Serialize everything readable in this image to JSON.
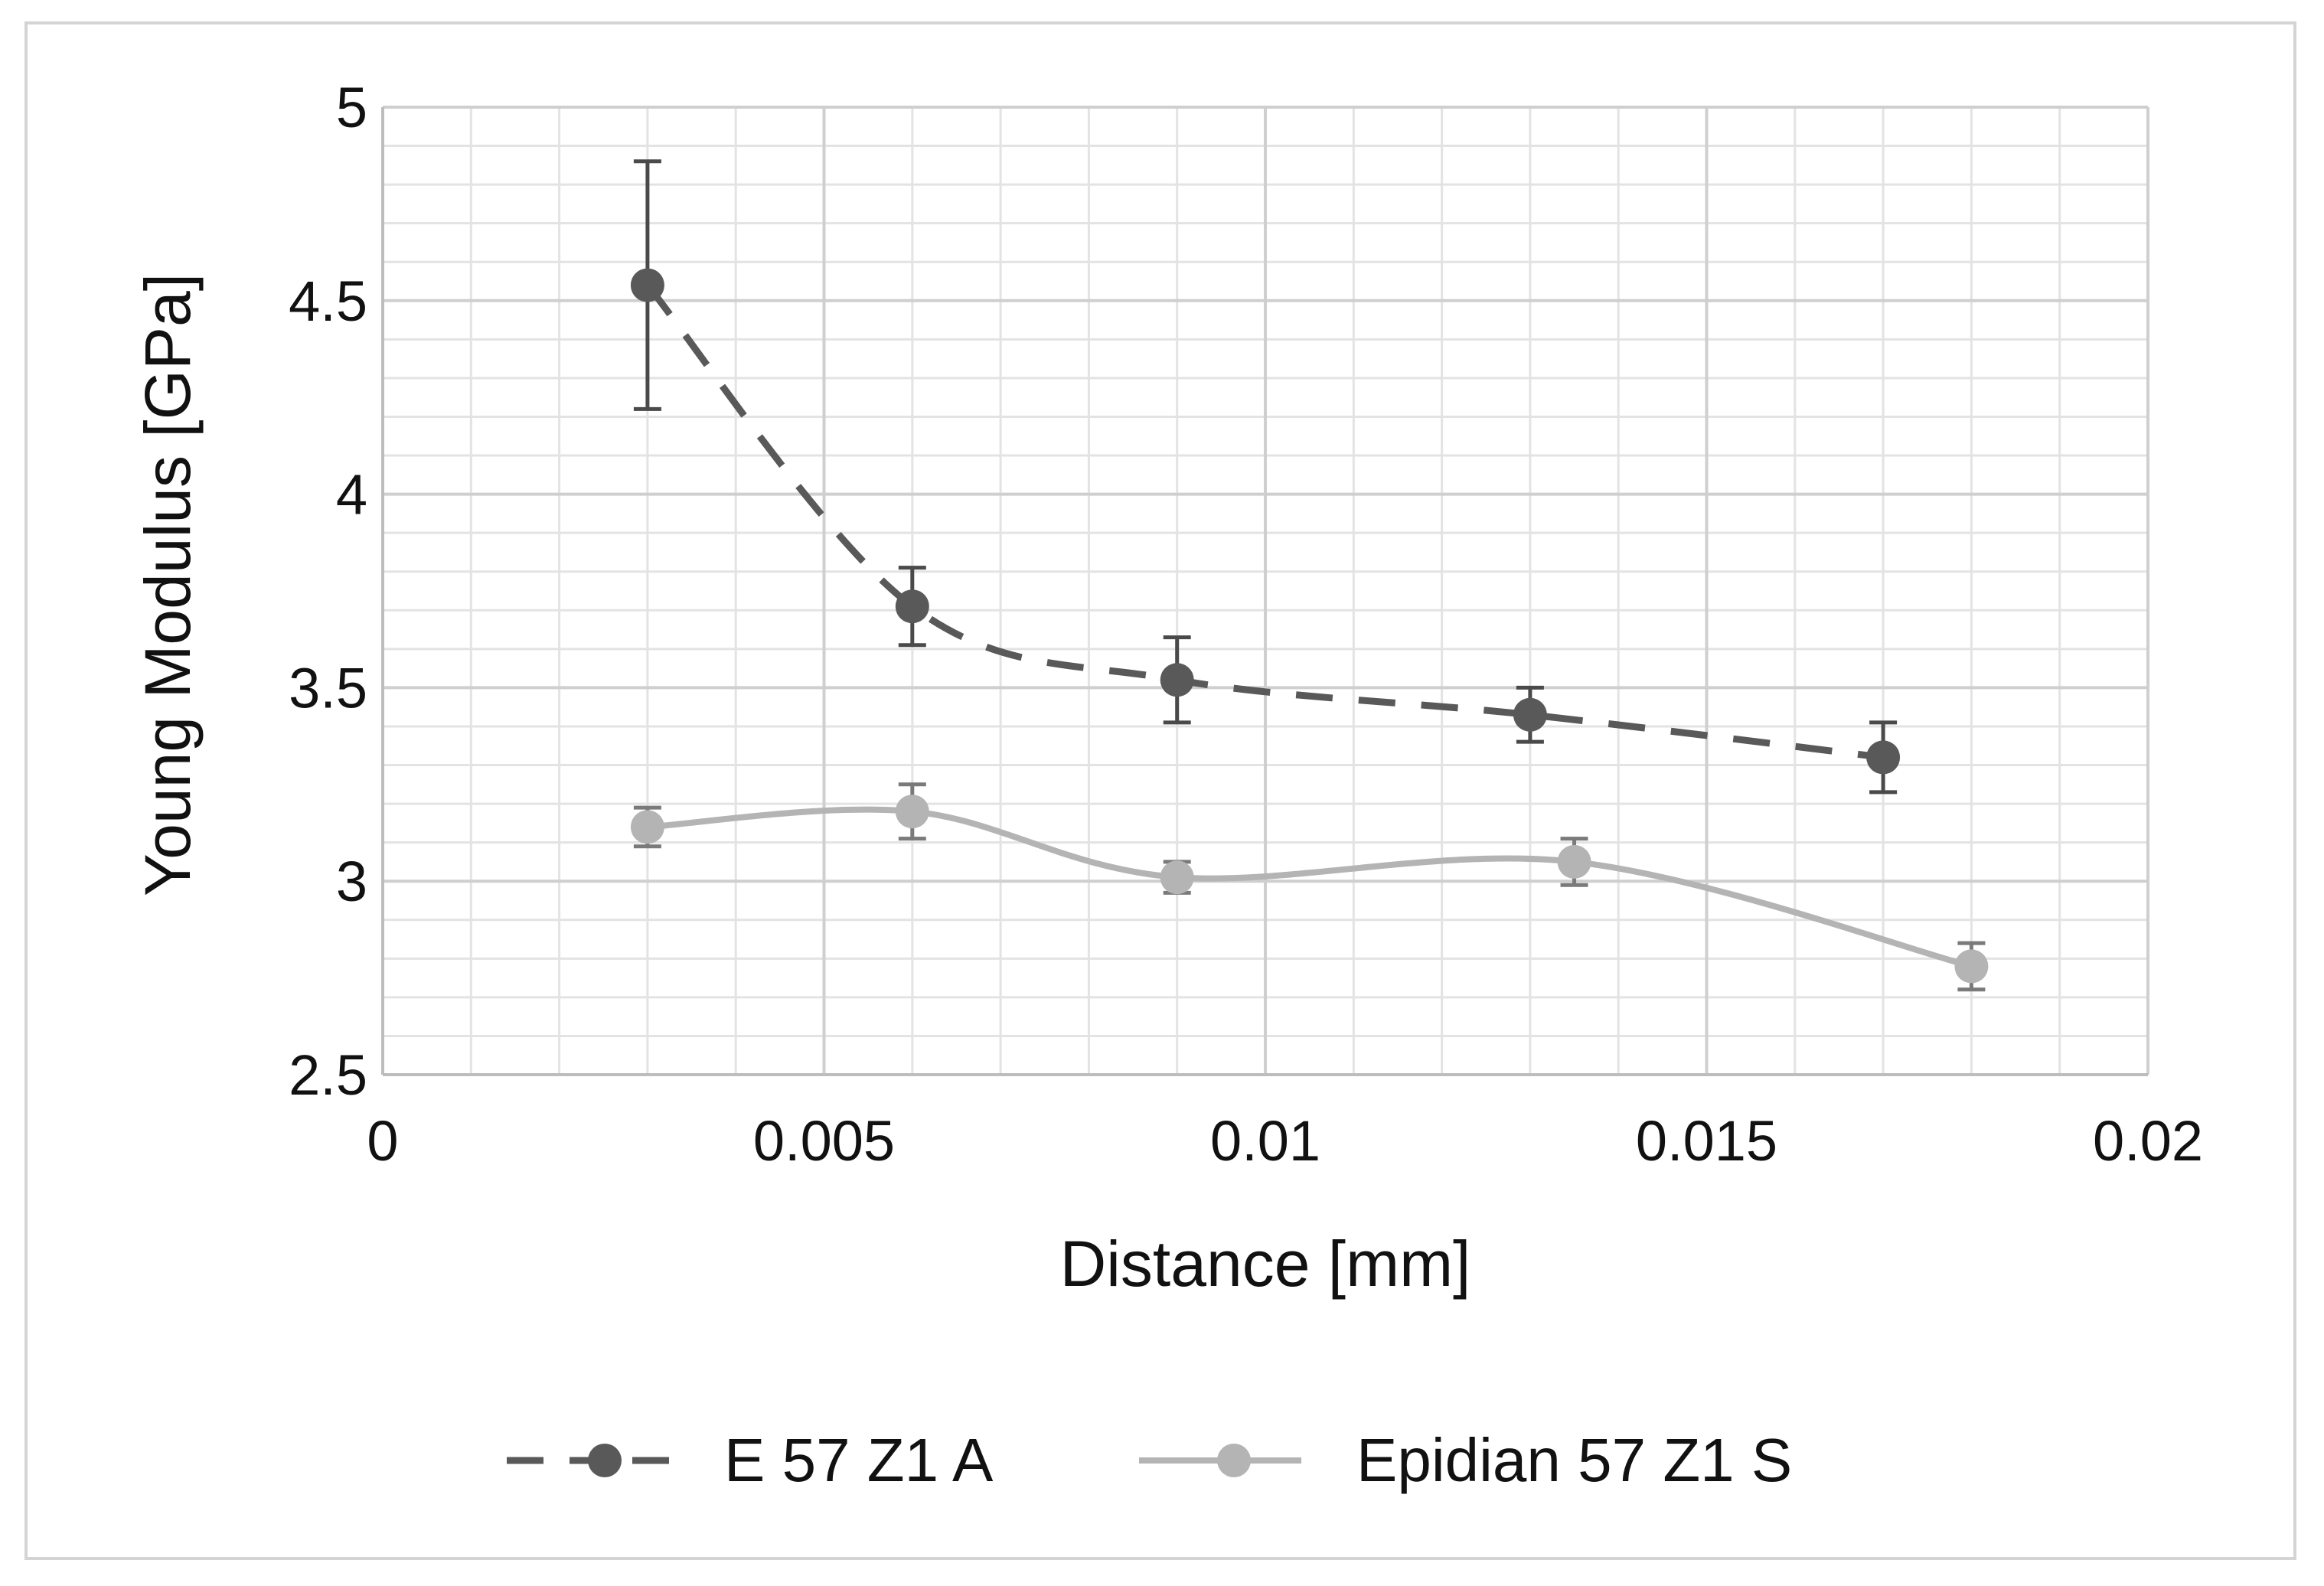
{
  "chart_data": {
    "type": "line",
    "title": "",
    "xlabel": "Distance [mm]",
    "ylabel": "Young Modulus  [GPa]",
    "xlim": [
      0,
      0.02
    ],
    "ylim": [
      2.5,
      5
    ],
    "x_ticks": [
      0,
      0.005,
      0.01,
      0.015,
      0.02
    ],
    "x_tick_labels": [
      "0",
      "0.005",
      "0.01",
      "0.015",
      "0.02"
    ],
    "y_ticks": [
      2.5,
      3,
      3.5,
      4,
      4.5,
      5
    ],
    "y_tick_labels": [
      "2.5",
      "3",
      "3.5",
      "4",
      "4.5",
      "5"
    ],
    "grid": "major and minor",
    "legend_position": "bottom",
    "series": [
      {
        "name": "E 57 Z1 A",
        "line_style": "dashed",
        "color": "#595959",
        "x": [
          0.003,
          0.006,
          0.009,
          0.013,
          0.017
        ],
        "y": [
          4.54,
          3.71,
          3.52,
          3.43,
          3.32
        ],
        "error": [
          0.32,
          0.1,
          0.11,
          0.07,
          0.09
        ]
      },
      {
        "name": "Epidian 57 Z1 S",
        "line_style": "solid",
        "color": "#b4b4b4",
        "x": [
          0.003,
          0.006,
          0.009,
          0.0135,
          0.018
        ],
        "y": [
          3.14,
          3.18,
          3.01,
          3.05,
          2.78
        ],
        "error": [
          0.05,
          0.07,
          0.04,
          0.06,
          0.06
        ]
      }
    ]
  }
}
